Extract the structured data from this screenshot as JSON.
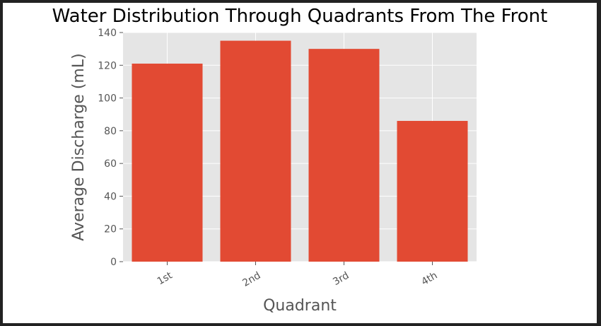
{
  "colors": {
    "bar": "#E24A33",
    "plot_background": "#E5E5E5",
    "grid": "#FFFFFF",
    "text": "#555555",
    "frame_background": "#222222"
  },
  "chart_data": {
    "type": "bar",
    "title": "Water Distribution Through Quadrants From The Front",
    "xlabel": "Quadrant",
    "ylabel": "Average Discharge (mL)",
    "categories": [
      "1st",
      "2nd",
      "3rd",
      "4th"
    ],
    "values": [
      121,
      135,
      130,
      86
    ],
    "ylim": [
      0,
      140
    ],
    "yticks": [
      "0",
      "20",
      "40",
      "60",
      "80",
      "100",
      "120",
      "140"
    ],
    "grid": true,
    "style": "ggplot"
  }
}
